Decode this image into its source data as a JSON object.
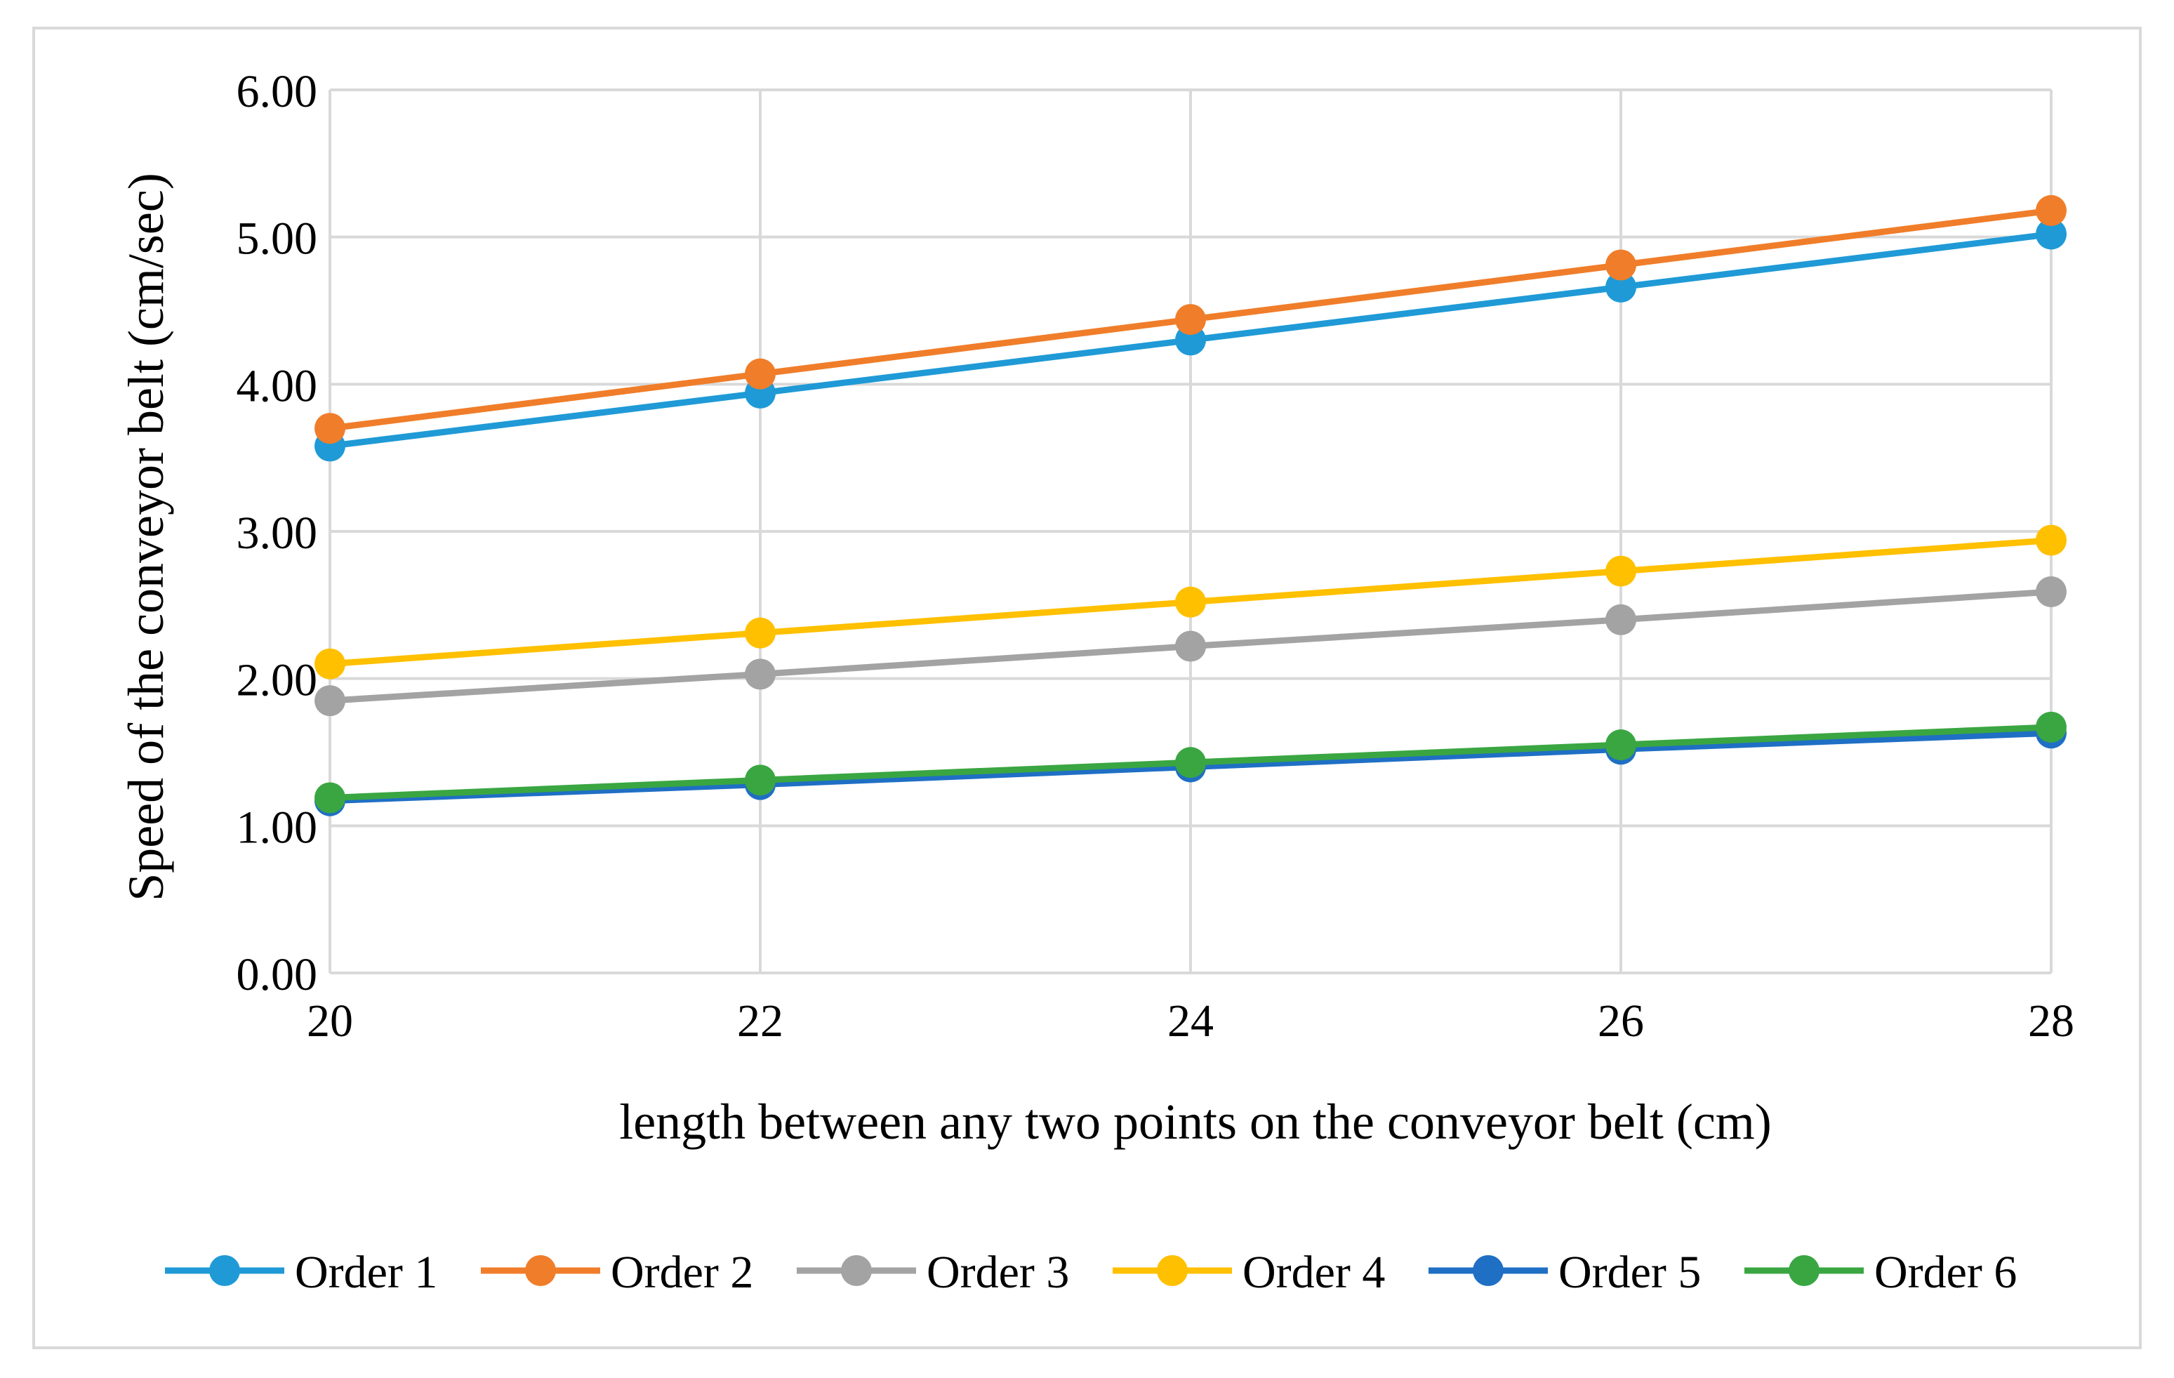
{
  "chart_data": {
    "type": "line",
    "title": "",
    "xlabel": "length between any two points on the conveyor belt (cm)",
    "ylabel": "Speed of the conveyor belt (cm/sec)",
    "x": [
      20,
      22,
      24,
      26,
      28
    ],
    "x_ticks": [
      "20",
      "22",
      "24",
      "26",
      "28"
    ],
    "xlim": [
      20,
      28
    ],
    "ylim": [
      0,
      6
    ],
    "y_ticks": [
      "0.00",
      "1.00",
      "2.00",
      "3.00",
      "4.00",
      "5.00",
      "6.00"
    ],
    "grid": true,
    "legend_position": "bottom",
    "series": [
      {
        "name": "Order 1",
        "color": "#1f9ad6",
        "values": [
          3.58,
          3.94,
          4.3,
          4.66,
          5.02
        ]
      },
      {
        "name": "Order 2",
        "color": "#f07d2a",
        "values": [
          3.7,
          4.07,
          4.44,
          4.81,
          5.18
        ]
      },
      {
        "name": "Order 3",
        "color": "#a3a3a3",
        "values": [
          1.85,
          2.03,
          2.22,
          2.4,
          2.59
        ]
      },
      {
        "name": "Order 4",
        "color": "#ffc000",
        "values": [
          2.1,
          2.31,
          2.52,
          2.73,
          2.94
        ]
      },
      {
        "name": "Order 5",
        "color": "#1f6fc4",
        "values": [
          1.17,
          1.28,
          1.4,
          1.52,
          1.63
        ]
      },
      {
        "name": "Order 6",
        "color": "#3aa642",
        "values": [
          1.19,
          1.31,
          1.43,
          1.55,
          1.67
        ]
      }
    ]
  }
}
